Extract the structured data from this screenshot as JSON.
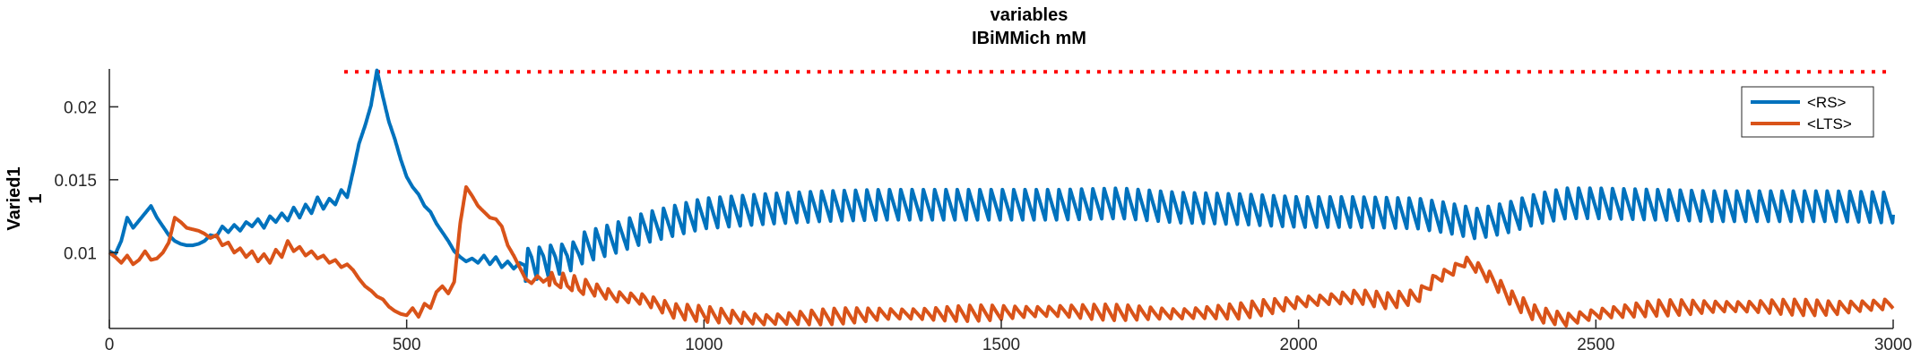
{
  "chart_data": {
    "type": "line",
    "title": "variables",
    "subtitle": "IBiMMich mM",
    "ylabel_lines": [
      "Varied1",
      "1"
    ],
    "xlim": [
      0,
      3000
    ],
    "ylim": [
      0.0048,
      0.0226
    ],
    "xticks": [
      0,
      500,
      1000,
      1500,
      2000,
      2500,
      3000
    ],
    "xtick_labels": [
      "0",
      "500",
      "1000",
      "1500",
      "2000",
      "2500",
      "3000"
    ],
    "yticks": [
      0.01,
      0.015,
      0.02
    ],
    "ytick_labels": [
      "0.01",
      "0.015",
      "0.02"
    ],
    "grid": false,
    "legend_position": "top-right",
    "reference_line": {
      "y": 0.0224,
      "x_start": 395,
      "x_end": 3000,
      "color": "#ff0000",
      "style": "dotted"
    },
    "series": [
      {
        "name": "<RS>",
        "color": "#0072bd",
        "x": [
          0,
          10,
          20,
          30,
          40,
          50,
          60,
          70,
          80,
          90,
          100,
          110,
          120,
          130,
          140,
          150,
          160,
          170,
          180,
          190,
          200,
          210,
          220,
          230,
          240,
          250,
          260,
          270,
          280,
          290,
          300,
          310,
          320,
          330,
          340,
          350,
          360,
          370,
          380,
          390,
          400,
          410,
          420,
          430,
          440,
          450,
          460,
          470,
          480,
          490,
          500,
          510,
          520,
          530,
          540,
          550,
          560,
          570,
          580,
          590,
          600,
          610,
          620,
          630,
          640,
          650,
          660,
          670,
          680,
          690,
          700,
          710,
          720,
          730,
          740,
          750,
          760,
          770,
          780,
          790,
          800,
          850,
          900,
          950,
          1000,
          1100,
          1200,
          1300,
          1400,
          1500,
          1600,
          1700,
          1800,
          1900,
          2000,
          2100,
          2200,
          2250,
          2300,
          2350,
          2400,
          2450,
          2500,
          2600,
          2700,
          2800,
          2900,
          3000
        ],
        "y": [
          0.0101,
          0.0099,
          0.0108,
          0.0124,
          0.0117,
          0.0122,
          0.0127,
          0.0132,
          0.0124,
          0.0118,
          0.0112,
          0.0108,
          0.0106,
          0.0105,
          0.0105,
          0.0106,
          0.0108,
          0.0112,
          0.0111,
          0.0118,
          0.0114,
          0.0119,
          0.0115,
          0.0121,
          0.0118,
          0.0123,
          0.0117,
          0.0125,
          0.0121,
          0.0127,
          0.0122,
          0.0131,
          0.0124,
          0.0133,
          0.0127,
          0.0138,
          0.013,
          0.0137,
          0.0133,
          0.0143,
          0.0138,
          0.0156,
          0.0175,
          0.0187,
          0.0201,
          0.0225,
          0.0207,
          0.019,
          0.0178,
          0.0164,
          0.0152,
          0.0145,
          0.014,
          0.0132,
          0.0128,
          0.012,
          0.0114,
          0.0108,
          0.0101,
          0.0097,
          0.0094,
          0.0096,
          0.0093,
          0.0098,
          0.0092,
          0.0097,
          0.009,
          0.0094,
          0.0089,
          0.0093,
          0.0091,
          0.0095,
          0.0092,
          0.0097,
          0.0094,
          0.0098,
          0.0095,
          0.01,
          0.0097,
          0.0102,
          0.0104,
          0.011,
          0.0117,
          0.0122,
          0.0127,
          0.013,
          0.0132,
          0.0133,
          0.0133,
          0.0133,
          0.0133,
          0.0134,
          0.0131,
          0.013,
          0.0128,
          0.0128,
          0.0127,
          0.0124,
          0.012,
          0.0124,
          0.013,
          0.0134,
          0.0134,
          0.0133,
          0.0132,
          0.0132,
          0.0132,
          0.0131
        ],
        "oscillation_amplitude": 0.0021,
        "oscillation_period": 19
      },
      {
        "name": "<LTS>",
        "color": "#d95319",
        "x": [
          0,
          10,
          20,
          30,
          40,
          50,
          60,
          70,
          80,
          90,
          100,
          110,
          120,
          130,
          140,
          150,
          160,
          170,
          180,
          190,
          200,
          210,
          220,
          230,
          240,
          250,
          260,
          270,
          280,
          290,
          300,
          310,
          320,
          330,
          340,
          350,
          360,
          370,
          380,
          390,
          400,
          410,
          420,
          430,
          440,
          450,
          460,
          470,
          480,
          490,
          500,
          510,
          520,
          530,
          540,
          550,
          560,
          570,
          580,
          590,
          600,
          610,
          620,
          630,
          640,
          650,
          660,
          670,
          680,
          690,
          700,
          710,
          720,
          730,
          740,
          750,
          760,
          770,
          780,
          790,
          800,
          850,
          900,
          950,
          1000,
          1050,
          1100,
          1150,
          1200,
          1250,
          1300,
          1400,
          1500,
          1600,
          1700,
          1800,
          1900,
          2000,
          2050,
          2100,
          2150,
          2200,
          2230,
          2260,
          2280,
          2300,
          2330,
          2360,
          2400,
          2450,
          2500,
          2600,
          2700,
          2800,
          2900,
          3000
        ],
        "y": [
          0.01,
          0.0097,
          0.0093,
          0.0098,
          0.0092,
          0.0095,
          0.0101,
          0.0095,
          0.0096,
          0.01,
          0.0107,
          0.0124,
          0.0121,
          0.0117,
          0.0116,
          0.0115,
          0.0113,
          0.011,
          0.0112,
          0.0105,
          0.0107,
          0.01,
          0.0103,
          0.0097,
          0.0101,
          0.0094,
          0.0099,
          0.0093,
          0.0102,
          0.0097,
          0.0108,
          0.0101,
          0.0104,
          0.0098,
          0.0101,
          0.0096,
          0.0098,
          0.0093,
          0.0095,
          0.009,
          0.0092,
          0.0088,
          0.0082,
          0.0077,
          0.0074,
          0.007,
          0.0068,
          0.0063,
          0.006,
          0.0058,
          0.0057,
          0.0062,
          0.0056,
          0.0065,
          0.0062,
          0.0073,
          0.0077,
          0.0072,
          0.008,
          0.012,
          0.0145,
          0.0139,
          0.0132,
          0.0128,
          0.0124,
          0.0123,
          0.0118,
          0.0105,
          0.0098,
          0.009,
          0.0082,
          0.0079,
          0.0084,
          0.008,
          0.0083,
          0.0078,
          0.0082,
          0.0077,
          0.008,
          0.0075,
          0.0077,
          0.007,
          0.0068,
          0.006,
          0.0058,
          0.0056,
          0.0054,
          0.0055,
          0.0056,
          0.0057,
          0.0058,
          0.0058,
          0.0059,
          0.006,
          0.0059,
          0.0058,
          0.006,
          0.0066,
          0.0068,
          0.007,
          0.0067,
          0.007,
          0.0082,
          0.0088,
          0.0094,
          0.009,
          0.008,
          0.0068,
          0.0058,
          0.0054,
          0.0058,
          0.0062,
          0.0063,
          0.0063,
          0.0062,
          0.0065
        ],
        "oscillation_amplitude": 0.0011,
        "oscillation_period": 19
      }
    ]
  }
}
